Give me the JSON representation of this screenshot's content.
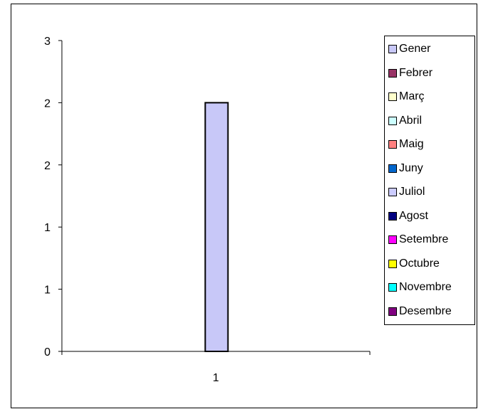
{
  "chart_data": {
    "type": "bar",
    "categories": [
      "1"
    ],
    "series": [
      {
        "name": "Gener",
        "values": [
          2
        ],
        "color": "#C8C8F8"
      },
      {
        "name": "Febrer",
        "values": [
          0
        ],
        "color": "#993366"
      },
      {
        "name": "Març",
        "values": [
          0
        ],
        "color": "#FFFFCC"
      },
      {
        "name": "Abril",
        "values": [
          0
        ],
        "color": "#CCFFFF"
      },
      {
        "name": "Maig",
        "values": [
          0
        ],
        "color": "#FF8080"
      },
      {
        "name": "Juny",
        "values": [
          0
        ],
        "color": "#0066CC"
      },
      {
        "name": "Juliol",
        "values": [
          0
        ],
        "color": "#CCCCFF"
      },
      {
        "name": "Agost",
        "values": [
          0
        ],
        "color": "#000080"
      },
      {
        "name": "Setembre",
        "values": [
          0
        ],
        "color": "#FF00FF"
      },
      {
        "name": "Octubre",
        "values": [
          0
        ],
        "color": "#FFFF00"
      },
      {
        "name": "Novembre",
        "values": [
          0
        ],
        "color": "#00FFFF"
      },
      {
        "name": "Desembre",
        "values": [
          0
        ],
        "color": "#800080"
      }
    ],
    "ylim": [
      0,
      2.5
    ],
    "yticks": [
      0,
      0.5,
      1,
      1.5,
      2,
      2.5
    ],
    "ytick_labels": [
      "0",
      "1",
      "1",
      "2",
      "2",
      "3"
    ],
    "grid": false,
    "legend_position": "right"
  }
}
